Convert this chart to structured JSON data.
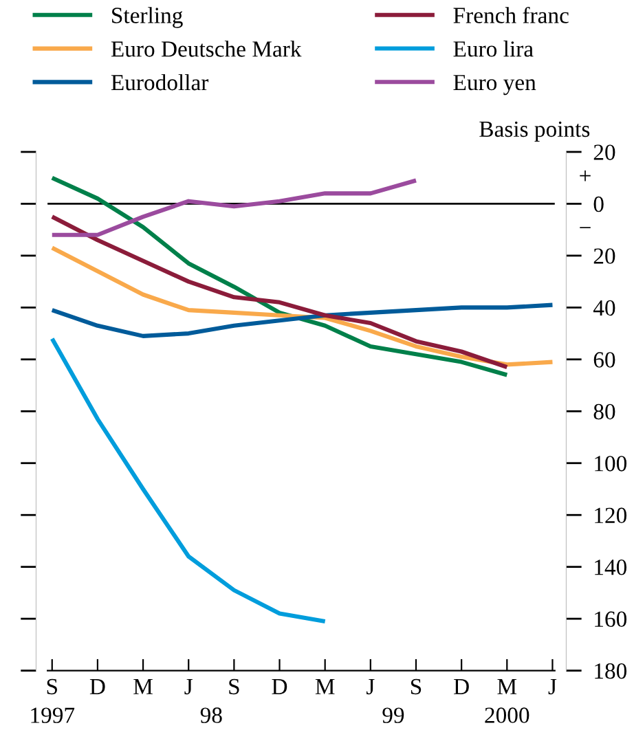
{
  "chart_data": {
    "type": "line",
    "categories": [
      "S",
      "D",
      "M",
      "J",
      "S",
      "D",
      "M",
      "J",
      "S",
      "D",
      "M",
      "J"
    ],
    "series": [
      {
        "name": "Sterling",
        "color": "#00804a",
        "values": [
          10,
          2,
          -9,
          -23,
          -32,
          -42,
          -47,
          -55,
          -58,
          -61,
          -66,
          null
        ]
      },
      {
        "name": "Euro Deutsche Mark",
        "color": "#f9a94b",
        "values": [
          -17,
          -26,
          -35,
          -41,
          -42,
          -43,
          -44,
          -49,
          -55,
          -59,
          -62,
          -61
        ]
      },
      {
        "name": "Eurodollar",
        "color": "#005b9a",
        "values": [
          -41,
          -47,
          -51,
          -50,
          -47,
          -45,
          -43,
          -42,
          -41,
          -40,
          -40,
          -39
        ]
      },
      {
        "name": "French franc",
        "color": "#8b1c3a",
        "values": [
          -5,
          -14,
          -22,
          -30,
          -36,
          -38,
          -43,
          -46,
          -53,
          -57,
          -63,
          null
        ]
      },
      {
        "name": "Euro lira",
        "color": "#009ddc",
        "values": [
          -52,
          -83,
          -110,
          -136,
          -149,
          -158,
          -161,
          null,
          null,
          null,
          null,
          null
        ]
      },
      {
        "name": "Euro yen",
        "color": "#9b4b9e",
        "values": [
          -12,
          -12,
          -5,
          1,
          -1,
          1,
          4,
          4,
          9,
          null,
          null,
          null
        ]
      }
    ],
    "ylabel": "Basis points",
    "ylim": [
      -180,
      20
    ],
    "yticks": [
      20,
      0,
      {
        "value": -20,
        "label": "20"
      },
      {
        "value": -40,
        "label": "40"
      },
      {
        "value": -60,
        "label": "60"
      },
      {
        "value": -80,
        "label": "80"
      },
      {
        "value": -100,
        "label": "100"
      },
      {
        "value": -120,
        "label": "120"
      },
      {
        "value": -140,
        "label": "140"
      },
      {
        "value": -160,
        "label": "160"
      },
      {
        "value": -180,
        "label": "180"
      }
    ],
    "ref_lines": [
      {
        "axis": "y",
        "value": 0,
        "color": "#000000"
      }
    ],
    "annotations": [
      "+",
      "−",
      "1997",
      "98",
      "99",
      "2000"
    ],
    "legend": "top",
    "grid": false,
    "marker": "none",
    "line_style": "solid"
  }
}
